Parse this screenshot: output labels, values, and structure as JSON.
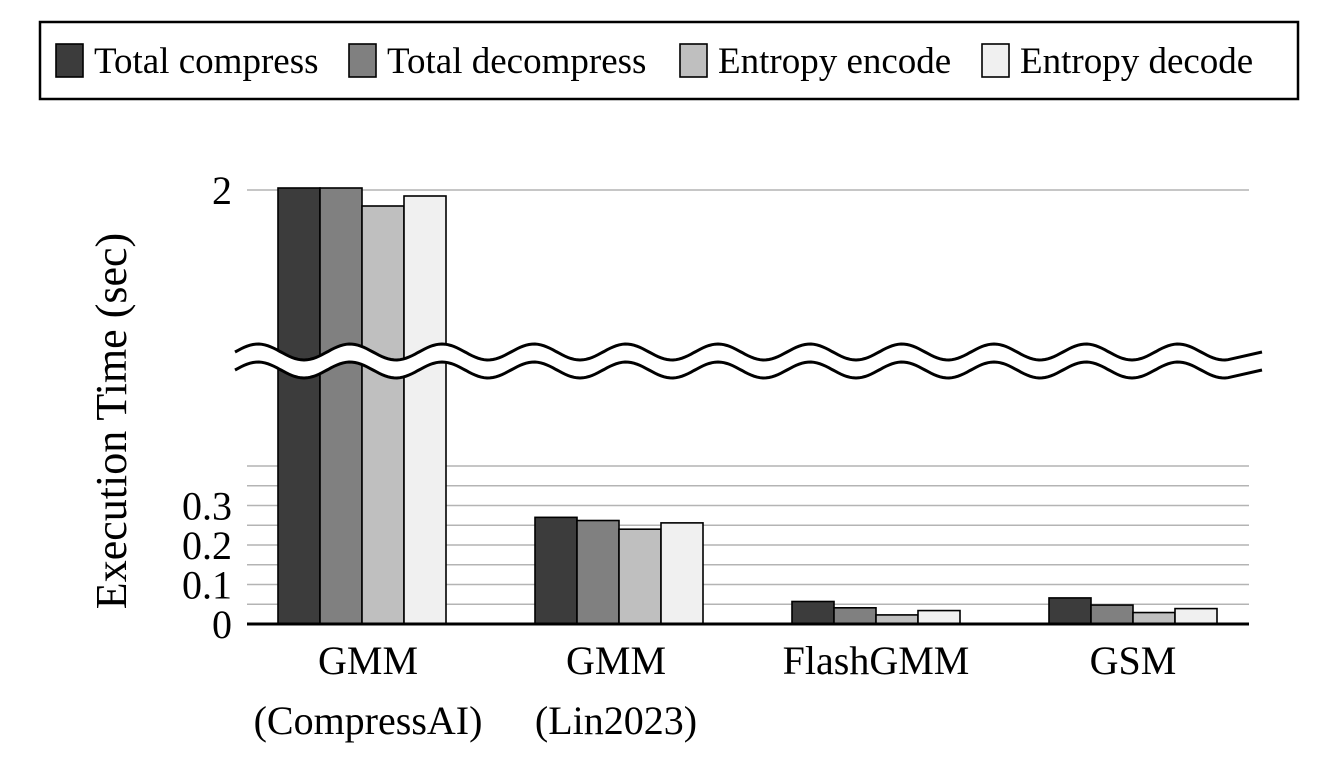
{
  "chart_data": {
    "type": "bar",
    "categories": [
      "GMM (CompressAI)",
      "GMM (Lin2023)",
      "FlashGMM",
      "GSM"
    ],
    "category_labels": [
      [
        "GMM",
        "(CompressAI)"
      ],
      [
        "GMM",
        "(Lin2023)"
      ],
      [
        "FlashGMM"
      ],
      [
        "GSM"
      ]
    ],
    "series": [
      {
        "name": "Total compress",
        "color": "#3c3c3c",
        "values": [
          2.01,
          0.27,
          0.057,
          0.066
        ]
      },
      {
        "name": "Total decompress",
        "color": "#808080",
        "values": [
          2.01,
          0.262,
          0.041,
          0.048
        ]
      },
      {
        "name": "Entropy encode",
        "color": "#bfbfbf",
        "values": [
          1.92,
          0.24,
          0.023,
          0.029
        ]
      },
      {
        "name": "Entropy decode",
        "color": "#f0f0f0",
        "values": [
          1.97,
          0.256,
          0.034,
          0.039
        ]
      }
    ],
    "ylabel": "Execution Time (sec)",
    "xlabel": "",
    "y_ticks": [
      0,
      0.1,
      0.2,
      0.3,
      2
    ],
    "y_tick_labels": [
      "0",
      "0.1",
      "0.2",
      "0.3",
      "2"
    ],
    "broken_axis": {
      "lower_range": [
        0,
        0.3
      ],
      "upper_value": 2
    },
    "grid": true,
    "legend_position": "top"
  }
}
